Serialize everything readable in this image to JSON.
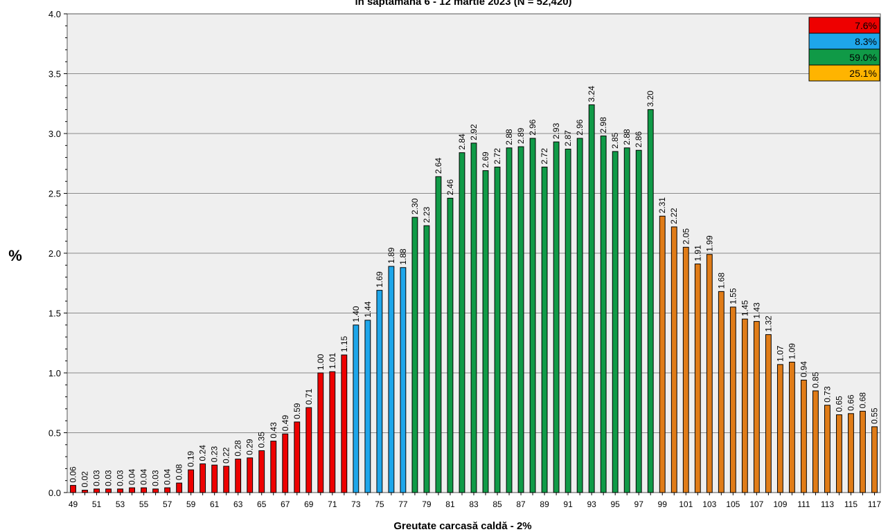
{
  "chart_data": {
    "type": "bar",
    "title": "în săptămâna 6 - 12 martie 2023 (N = 52,420)",
    "xlabel": "Greutate carcasă caldă - 2%",
    "ylabel": "%",
    "ylim": [
      0,
      4.0
    ],
    "yticks": [
      "0.0",
      "0.5",
      "1.0",
      "1.5",
      "2.0",
      "2.5",
      "3.0",
      "3.5",
      "4.0"
    ],
    "grid": true,
    "legend_position": "top-right",
    "colors": {
      "red": "#ee0000",
      "blue": "#1ea6ea",
      "green": "#109a47",
      "orange": "#e07c18",
      "legend_orange": "#ffb400"
    },
    "legend": [
      {
        "label": "7.6%",
        "color": "#ee0000"
      },
      {
        "label": "8.3%",
        "color": "#1ea6ea"
      },
      {
        "label": "59.0%",
        "color": "#109a47"
      },
      {
        "label": "25.1%",
        "color": "#ffb400"
      }
    ],
    "x": [
      49,
      50,
      51,
      52,
      53,
      54,
      55,
      56,
      57,
      58,
      59,
      60,
      61,
      62,
      63,
      64,
      65,
      66,
      67,
      68,
      69,
      70,
      71,
      72,
      73,
      74,
      75,
      76,
      77,
      78,
      79,
      80,
      81,
      82,
      83,
      84,
      85,
      86,
      87,
      88,
      89,
      90,
      91,
      92,
      93,
      94,
      95,
      96,
      97,
      98,
      99,
      100,
      101,
      102,
      103,
      104,
      105,
      106,
      107,
      108,
      109,
      110,
      111,
      112,
      113,
      114,
      115,
      116,
      117
    ],
    "x_tick_labels": [
      "49",
      "51",
      "53",
      "55",
      "57",
      "59",
      "61",
      "63",
      "65",
      "67",
      "69",
      "71",
      "73",
      "75",
      "77",
      "79",
      "81",
      "83",
      "85",
      "87",
      "89",
      "91",
      "93",
      "95",
      "97",
      "99",
      "101",
      "103",
      "105",
      "107",
      "109",
      "111",
      "113",
      "115",
      "117"
    ],
    "values": [
      0.06,
      0.02,
      0.03,
      0.03,
      0.03,
      0.04,
      0.04,
      0.03,
      0.04,
      0.08,
      0.19,
      0.24,
      0.23,
      0.22,
      0.28,
      0.29,
      0.35,
      0.43,
      0.49,
      0.59,
      0.71,
      1.0,
      1.01,
      1.15,
      1.4,
      1.44,
      1.69,
      1.89,
      1.88,
      2.3,
      2.23,
      2.64,
      2.46,
      2.84,
      2.92,
      2.69,
      2.72,
      2.88,
      2.89,
      2.96,
      2.72,
      2.93,
      2.87,
      2.96,
      3.24,
      2.98,
      2.85,
      2.88,
      2.86,
      3.2,
      2.31,
      2.22,
      2.05,
      1.91,
      1.99,
      1.68,
      1.55,
      1.45,
      1.43,
      1.32,
      1.07,
      1.09,
      0.94,
      0.85,
      0.73,
      0.65,
      0.66,
      0.68,
      0.55
    ],
    "labels": [
      "0.06",
      "0.02",
      "0.03",
      "0.03",
      "0.03",
      "0.04",
      "0.04",
      "0.03",
      "0.04",
      "0.08",
      "0.19",
      "0.24",
      "0.23",
      "0.22",
      "0.28",
      "0.29",
      "0.35",
      "0.43",
      "0.49",
      "0.59",
      "0.71",
      "1.00",
      "1.01",
      "1.15",
      "1.40",
      "1.44",
      "1.69",
      "1.89",
      "1.88",
      "2.30",
      "2.23",
      "2.64",
      "2.46",
      "2.84",
      "2.92",
      "2.69",
      "2.72",
      "2.88",
      "2.89",
      "2.96",
      "2.72",
      "2.93",
      "2.87",
      "2.96",
      "3.24",
      "2.98",
      "2.85",
      "2.88",
      "2.86",
      "3.20",
      "2.31",
      "2.22",
      "2.05",
      "1.91",
      "1.99",
      "1.68",
      "1.55",
      "1.45",
      "1.43",
      "1.32",
      "1.07",
      "1.09",
      "0.94",
      "0.85",
      "0.73",
      "0.65",
      "0.66",
      "0.68",
      "0.55"
    ],
    "bar_color_groups": [
      {
        "from": 49,
        "to": 72,
        "color": "#ee0000"
      },
      {
        "from": 73,
        "to": 77,
        "color": "#1ea6ea"
      },
      {
        "from": 78,
        "to": 98,
        "color": "#109a47"
      },
      {
        "from": 99,
        "to": 117,
        "color": "#e07c18"
      }
    ]
  }
}
